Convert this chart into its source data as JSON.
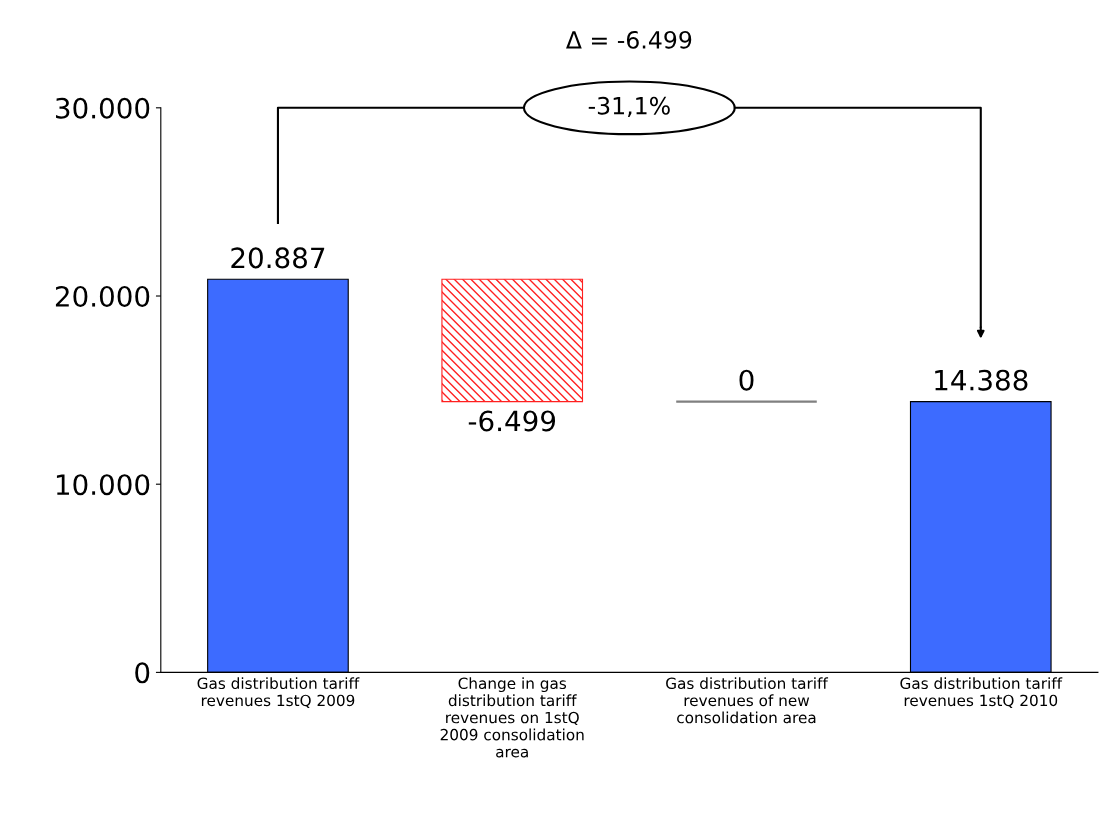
{
  "chart_data": {
    "type": "bar",
    "categories": [
      "Gas distribution tariff\nrevenues 1stQ 2009",
      "Change in gas\ndistribution tariff\nrevenues on 1stQ\n2009 consolidation\narea",
      "Gas distribution tariff\nrevenues of new\nconsolidation area",
      "Gas distribution tariff\nrevenues 1stQ 2010"
    ],
    "values": [
      20887,
      -6499,
      0,
      14388
    ],
    "base": [
      0,
      20887,
      14388,
      0
    ],
    "colors": [
      "#3d6bff",
      "#ff2020",
      "#808080",
      "#3d6bff"
    ],
    "value_labels": [
      "20.887",
      "-6.499",
      "0",
      "14.388"
    ],
    "ylim": [
      0,
      30000
    ],
    "yticks": [
      {
        "value": 0,
        "label": "0"
      },
      {
        "value": 10000,
        "label": "10.000"
      },
      {
        "value": 20000,
        "label": "20.000"
      },
      {
        "value": 30000,
        "label": "30.000"
      }
    ],
    "annotations": [
      "Δ = -6.499",
      "-31,1%"
    ],
    "grid": false,
    "legend": false
  }
}
